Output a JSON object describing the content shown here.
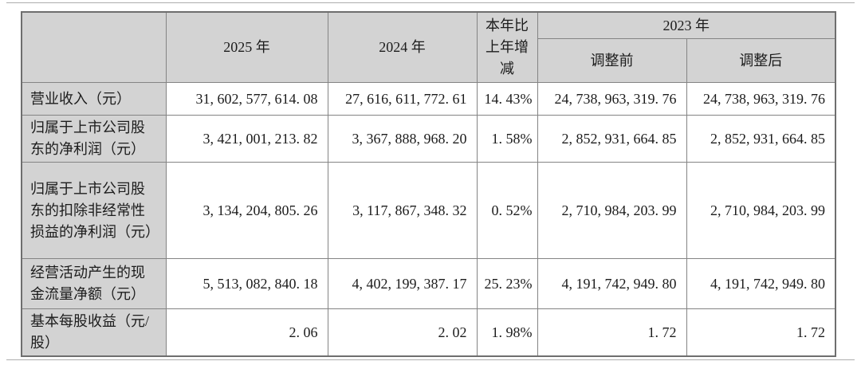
{
  "colors": {
    "header_cell_bg": "#d3d3d3",
    "inner_border": "#848484",
    "outer_border": "#6e6e6e",
    "page_rule": "#adadad",
    "text": "#1c1c1c"
  },
  "table": {
    "headers": {
      "corner": "",
      "period_2025": "2025 年",
      "period_2024": "2024 年",
      "yoy": "本年比上年增减",
      "period_2023": "2023 年",
      "adjust_before": "调整前",
      "adjust_after": "调整后"
    },
    "rows": [
      {
        "label": "营业收入（元）",
        "v2025": "31, 602, 577, 614. 08",
        "v2024": "27, 616, 611, 772. 61",
        "yoy": "14. 43%",
        "before": "24, 738, 963, 319. 76",
        "after": "24, 738, 963, 319. 76"
      },
      {
        "label": "归属于上市公司股东的净利润（元）",
        "v2025": "3, 421, 001, 213. 82",
        "v2024": "3, 367, 888, 968. 20",
        "yoy": "1. 58%",
        "before": "2, 852, 931, 664. 85",
        "after": "2, 852, 931, 664. 85"
      },
      {
        "label": "归属于上市公司股东的扣除非经常性损益的净利润（元）",
        "v2025": "3, 134, 204, 805. 26",
        "v2024": "3, 117, 867, 348. 32",
        "yoy": "0. 52%",
        "before": "2, 710, 984, 203. 99",
        "after": "2, 710, 984, 203. 99"
      },
      {
        "label": "经营活动产生的现金流量净额（元）",
        "v2025": "5, 513, 082, 840. 18",
        "v2024": "4, 402, 199, 387. 17",
        "yoy": "25. 23%",
        "before": "4, 191, 742, 949. 80",
        "after": "4, 191, 742, 949. 80"
      },
      {
        "label": "基本每股收益（元/股）",
        "v2025": "2. 06",
        "v2024": "2. 02",
        "yoy": "1. 98%",
        "before": "1. 72",
        "after": "1. 72"
      }
    ]
  }
}
